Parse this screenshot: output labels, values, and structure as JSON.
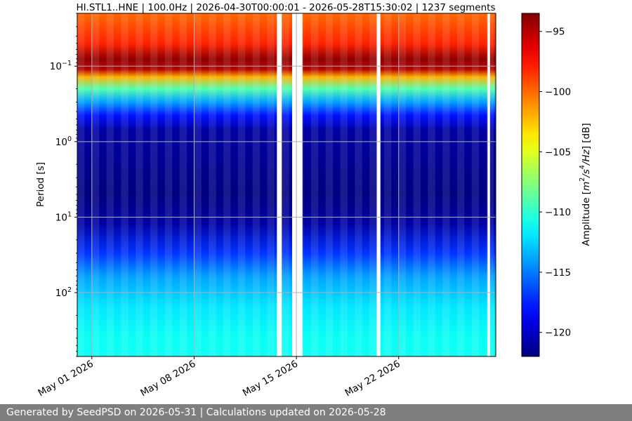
{
  "chart_data": {
    "type": "heatmap",
    "title": "HI.STL1..HNE | 100.0Hz | 2026-04-30T00:00:01 - 2026-05-28T15:30:02 | 1237 segments",
    "ylabel": "Period [s]",
    "xlabel": "",
    "y_scale": "log",
    "y_inverted": true,
    "ylim": [
      0.02,
      700
    ],
    "y_ticks": [
      {
        "value": 0.1,
        "base": "10",
        "exp": "−1"
      },
      {
        "value": 1,
        "base": "10",
        "exp": "0"
      },
      {
        "value": 10,
        "base": "10",
        "exp": "1"
      },
      {
        "value": 100,
        "base": "10",
        "exp": "2"
      }
    ],
    "xlim": [
      "2026-04-30T00:00:01",
      "2026-05-28T15:30:02"
    ],
    "x_ticks": [
      "May 01 2026",
      "May 08 2026",
      "May 15 2026",
      "May 22 2026"
    ],
    "x_tick_dates": [
      "2026-05-01",
      "2026-05-08",
      "2026-05-15",
      "2026-05-22"
    ],
    "grid": true,
    "data_gaps": [
      {
        "start": "2026-05-13T16:00:00",
        "end": "2026-05-14T00:00:00"
      },
      {
        "start": "2026-05-14T17:00:00",
        "end": "2026-05-15T10:00:00"
      },
      {
        "start": "2026-05-20T12:00:00",
        "end": "2026-05-20T18:00:00"
      },
      {
        "start": "2026-05-28T02:00:00",
        "end": "2026-05-28T06:00:00"
      }
    ],
    "amplitude_profile": [
      {
        "period": 0.02,
        "amplitude": -100
      },
      {
        "period": 0.05,
        "amplitude": -98
      },
      {
        "period": 0.08,
        "amplitude": -94
      },
      {
        "period": 0.11,
        "amplitude": -95
      },
      {
        "period": 0.14,
        "amplitude": -102
      },
      {
        "period": 0.2,
        "amplitude": -109
      },
      {
        "period": 0.3,
        "amplitude": -114
      },
      {
        "period": 0.45,
        "amplitude": -118
      },
      {
        "period": 0.7,
        "amplitude": -121
      },
      {
        "period": 5,
        "amplitude": -122
      },
      {
        "period": 12,
        "amplitude": -121
      },
      {
        "period": 30,
        "amplitude": -117
      },
      {
        "period": 60,
        "amplitude": -114
      },
      {
        "period": 150,
        "amplitude": -112
      },
      {
        "period": 400,
        "amplitude": -111
      },
      {
        "period": 700,
        "amplitude": -111
      }
    ],
    "colorbar": {
      "label_prefix": "Amplitude [",
      "label_unit_1": "m",
      "label_sup_1": "2",
      "label_unit_2": "/s",
      "label_sup_2": "4",
      "label_unit_3": "/Hz",
      "label_suffix": "] [dB]",
      "vmin": -122,
      "vmax": -93.5,
      "ticks": [
        "−95",
        "−100",
        "−105",
        "−110",
        "−115",
        "−120"
      ],
      "tick_values": [
        -95,
        -100,
        -105,
        -110,
        -115,
        -120
      ],
      "colormap": "jet"
    }
  },
  "footer": {
    "text": "Generated by SeedPSD on 2026-05-31 | Calculations updated on 2026-05-28"
  },
  "colors": {
    "footer_bg": "#7f7f7f",
    "grid": "#b0b0b0",
    "gap": "#ffffff"
  }
}
